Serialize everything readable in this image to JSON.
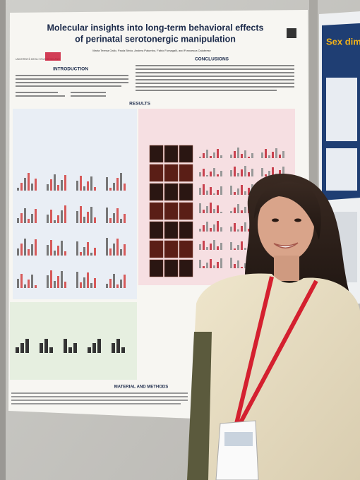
{
  "poster": {
    "title_lines": [
      "Molecular insights into long-term behavioral effects",
      "of perinatal serotonergic manipulation"
    ],
    "authors": "Maria Teresa Gallo, Paola Brivio, Andrea Palumbo, Fabio Fumagalli, and Francesca Calabrese",
    "logo": "UNIVERSITÀ DEGLI STUDI DI MILANO",
    "sections": {
      "introduction": "INTRODUCTION",
      "conclusions": "CONCLUSIONS",
      "results": "RESULTS",
      "methods": "MATERIAL AND METHODS"
    }
  },
  "neighbor_poster": {
    "title": "Sex dimorp"
  }
}
